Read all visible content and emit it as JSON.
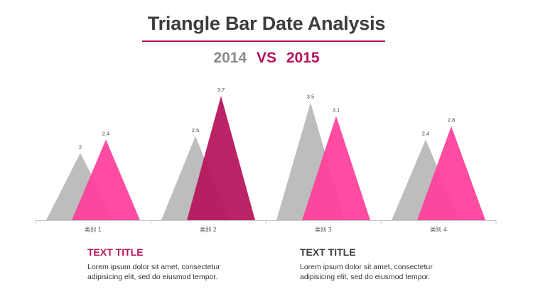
{
  "colors": {
    "title": "#3d3d3d",
    "accent": "#b5135b",
    "accent_bright": "#ff3e9c",
    "gray_triangle": "#bdbdbd",
    "year_gray": "#8a8a8a",
    "axis": "#c8c8c8"
  },
  "header": {
    "title": "Triangle Bar Date Analysis",
    "year_a": "2014",
    "vs": "VS",
    "year_b": "2015"
  },
  "chart_data": {
    "type": "bar",
    "style": "triangle",
    "title": "Triangle Bar Date Analysis",
    "categories": [
      "类别 1",
      "类别 2",
      "类别 3",
      "类别 4"
    ],
    "series": [
      {
        "name": "2014",
        "values": [
          2,
          2.5,
          3.5,
          2.4
        ],
        "color": "#bdbdbd"
      },
      {
        "name": "2015",
        "values": [
          2.4,
          3.7,
          3.1,
          2.8
        ],
        "color": "#ff3e9c"
      }
    ],
    "highlight": {
      "series": "2015",
      "category_index": 1,
      "color": "#b5135b"
    },
    "ylim": [
      0,
      3.7
    ],
    "xlabel": "",
    "ylabel": ""
  },
  "text_blocks": [
    {
      "title": "TEXT TITLE",
      "body_line1": "Lorem ipsum dolor sit amet, consectetur",
      "body_line2": "adipisicing elit, sed do eiusmod tempor.",
      "title_color": "#b5135b"
    },
    {
      "title": "TEXT TITLE",
      "body_line1": "Lorem ipsum dolor sit amet, consectetur",
      "body_line2": "adipisicing elit, sed do eiusmod tempor.",
      "title_color": "#3d3d3d"
    }
  ]
}
